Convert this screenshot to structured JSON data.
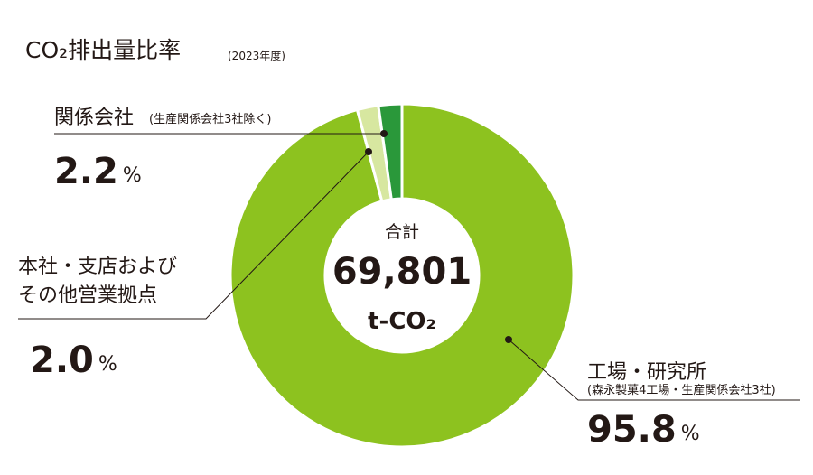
{
  "chart_data": {
    "type": "donut",
    "title": "CO₂排出量比率",
    "subtitle": "(2023年度)",
    "center_label": "合計",
    "total": {
      "value": 69801,
      "label": "69,801"
    },
    "total_unit": "t-CO₂",
    "categories": [
      "工場・研究所",
      "本社・支店およびその他営業拠点",
      "関係会社"
    ],
    "sublabels": [
      "(森永製菓4工場・生産関係会社3社)",
      null,
      "(生産関係会社3社除く)"
    ],
    "values": [
      95.8,
      2.0,
      2.2
    ],
    "value_labels": [
      "95.8",
      "2.0",
      "2.2"
    ],
    "unit": "%",
    "colors": [
      "#8dc21f",
      "#d7e7a0",
      "#2a983a"
    ]
  }
}
